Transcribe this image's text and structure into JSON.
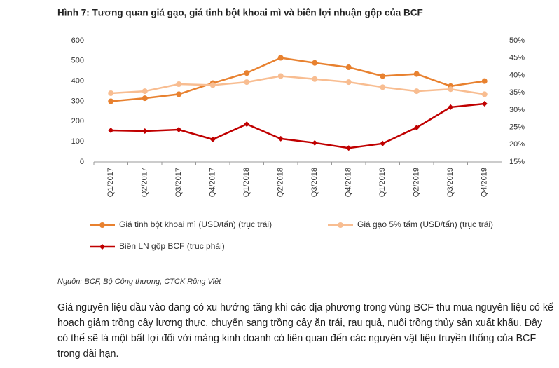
{
  "chart_data": {
    "type": "line",
    "title": "Hình 7: Tương quan giá gạo, giá tinh bột khoai mì và biên lợi nhuận gộp của BCF",
    "categories": [
      "Q1/2017",
      "Q2/2017",
      "Q3/2017",
      "Q4/2017",
      "Q1/2018",
      "Q2/2018",
      "Q3/2018",
      "Q4/2018",
      "Q1/2019",
      "Q2/2019",
      "Q3/2019",
      "Q4/2019"
    ],
    "series": [
      {
        "name": "Giá tinh bột khoai mì (USD/tấn) (trục trái)",
        "color": "#e8812f",
        "marker": "circle",
        "values": [
          300,
          315,
          335,
          390,
          440,
          515,
          490,
          468,
          425,
          435,
          375,
          400
        ]
      },
      {
        "name": "Giá gạo 5% tấm (USD/tấn) (trục trái)",
        "color": "#f8bd91",
        "marker": "circle",
        "values": [
          340,
          350,
          385,
          380,
          395,
          425,
          410,
          395,
          370,
          350,
          360,
          335
        ]
      },
      {
        "name": "Biên LN gộp BCF (trục phải)",
        "color": "#c00000",
        "marker": "diamond",
        "axis": "y2",
        "values": [
          24.1,
          23.9,
          24.3,
          21.5,
          25.9,
          21.7,
          20.5,
          19.0,
          20.3,
          24.9,
          30.8,
          31.8
        ]
      }
    ],
    "ylim": [
      0,
      600
    ],
    "yticks": [
      0,
      100,
      200,
      300,
      400,
      500,
      600
    ],
    "y2lim": [
      15,
      50
    ],
    "y2ticks": [
      {
        "value": 15,
        "label": "15%"
      },
      {
        "value": 20,
        "label": "20%"
      },
      {
        "value": 25,
        "label": "25%"
      },
      {
        "value": 30,
        "label": "30%"
      },
      {
        "value": 35,
        "label": "35%"
      },
      {
        "value": 40,
        "label": "40%"
      },
      {
        "value": 45,
        "label": "45%"
      },
      {
        "value": 50,
        "label": "50%"
      }
    ],
    "grid": false
  },
  "source": "Nguồn: BCF, Bộ Công thương, CTCK Rồng Việt",
  "body": "Giá nguyên liệu đầu vào đang có xu hướng tăng khi các địa phương trong vùng BCF thu mua nguyên liệu có kế hoạch giảm trồng cây lương thực, chuyển sang trồng cây ăn trái, rau quả, nuôi trồng thủy sản xuất khẩu. Đây có thể sẽ là một bất lợi đối với mảng kinh doanh có liên quan đến các nguyên vật liệu truyền thống của BCF trong dài hạn."
}
